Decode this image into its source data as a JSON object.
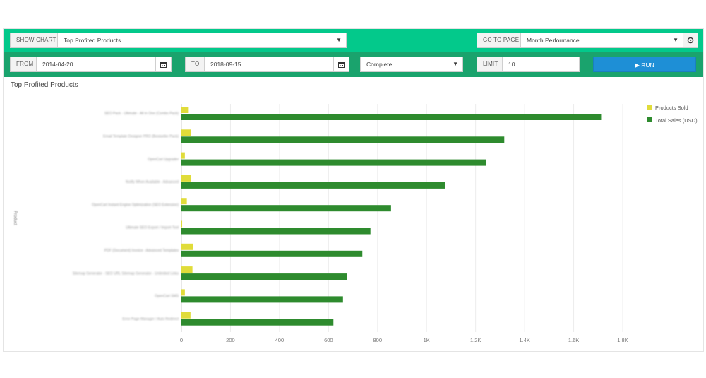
{
  "toolbar": {
    "show_chart_label": "SHOW CHART",
    "chart_select_value": "Top Profited Products",
    "go_to_page_label": "GO TO PAGE",
    "page_select_value": "Month Performance",
    "from_label": "FROM",
    "from_value": "2014-04-20",
    "to_label": "TO",
    "to_value": "2018-09-15",
    "status_value": "Complete",
    "limit_label": "LIMIT",
    "limit_value": "10",
    "run_label": "▶ RUN"
  },
  "colors": {
    "header_top": "#03c98b",
    "header_bottom": "#1aa36d",
    "run_button": "#1e8fd6",
    "products_sold": "#e0dc3a",
    "total_sales": "#2e8b2e"
  },
  "chart_data": {
    "type": "bar",
    "orientation": "horizontal",
    "title": "Top Profited Products",
    "ylabel": "Product",
    "xlabel": "",
    "categories": [
      "SEO Pack - Ultimate - All in One (Combo Pack)",
      "Email Template Designer PRO (Bestseller Pack)",
      "OpenCart Upgrader",
      "Notify When Available - Advanced",
      "OpenCart Instant Engine Optimization (SEO Extension)",
      "Ultimate SEO Export / Import Tool",
      "PDF (Document) Invoice - Advanced Templates",
      "Sitemap Generator - SEO URL Sitemap Generator - Unlimited Links",
      "OpenCart SMS",
      "Error Page Manager / Auto Redirect"
    ],
    "series": [
      {
        "name": "Products Sold",
        "values": [
          27,
          38,
          14,
          38,
          22,
          3,
          47,
          45,
          14,
          37
        ]
      },
      {
        "name": "Total Sales (USD)",
        "values": [
          1712,
          1317,
          1244,
          1076,
          855,
          771,
          738,
          674,
          659,
          620
        ]
      }
    ],
    "xlim": [
      0,
      1800
    ],
    "xticks": [
      "0",
      "200",
      "400",
      "600",
      "800",
      "1K",
      "1.2K",
      "1.4K",
      "1.6K",
      "1.8K"
    ],
    "grid": true,
    "legend_position": "top-right"
  }
}
